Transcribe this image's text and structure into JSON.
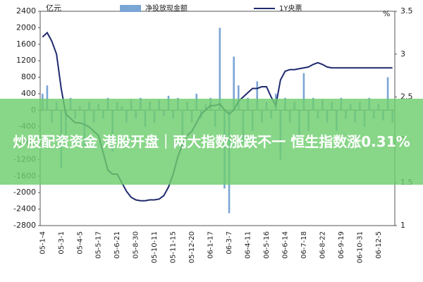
{
  "chart_data": {
    "type": "bar-line",
    "y_unit": "亿元",
    "y2_unit": "%",
    "overlay_text": "炒股配资资金 港股开盘｜两大指数涨跌不一 恒生指数涨0.31%",
    "categories": [
      "05-1-4",
      null,
      null,
      null,
      "05-3-1",
      null,
      null,
      null,
      "05-4-5",
      null,
      null,
      null,
      "05-5-17",
      null,
      null,
      null,
      "05-6-21",
      null,
      null,
      null,
      "05-8-30",
      null,
      null,
      null,
      "05-10-11",
      null,
      null,
      null,
      "05-11-15",
      null,
      null,
      null,
      "05-12-20",
      null,
      null,
      null,
      "06-1-17",
      null,
      null,
      null,
      "06-3-7",
      null,
      null,
      null,
      "06-4-11",
      null,
      null,
      null,
      "06-5-16",
      null,
      null,
      null,
      "06-6-14",
      null,
      null,
      null,
      "06-7-18",
      null,
      null,
      null,
      "06-8-22",
      null,
      null,
      null,
      "06-9-19",
      null,
      null,
      null,
      "06-10-31",
      null,
      null,
      null,
      "06-12-5",
      null,
      null,
      null
    ],
    "series": [
      {
        "name": "净投放现金额",
        "color": "#7aa6d6",
        "axis": "y",
        "values": [
          400,
          600,
          -300,
          200,
          -1400,
          -600,
          300,
          -200,
          100,
          -900,
          200,
          -300,
          150,
          -200,
          300,
          -1000,
          200,
          100,
          -300,
          250,
          -200,
          300,
          -400,
          200,
          -300,
          250,
          -150,
          350,
          -200,
          300,
          -600,
          200,
          -300,
          400,
          -200,
          150,
          300,
          -400,
          2000,
          -1900,
          -2500,
          1300,
          600,
          -800,
          300,
          -500,
          700,
          -300,
          200,
          -200,
          400,
          -1200,
          300,
          -300,
          200,
          -600,
          900,
          -500,
          300,
          -200,
          250,
          -300,
          200,
          -500,
          300,
          -200,
          150,
          -300,
          200,
          -400,
          300,
          -200,
          150,
          -250,
          800,
          -300
        ]
      },
      {
        "name": "1Y央票",
        "color": "#1f2a6e",
        "axis": "y2",
        "values": [
          3.2,
          3.25,
          3.15,
          3.0,
          2.6,
          2.3,
          2.25,
          2.2,
          2.2,
          2.18,
          2.15,
          2.1,
          2.05,
          1.85,
          1.65,
          1.6,
          1.6,
          1.5,
          1.4,
          1.33,
          1.3,
          1.29,
          1.29,
          1.3,
          1.3,
          1.31,
          1.35,
          1.45,
          1.6,
          1.8,
          1.95,
          2.05,
          2.1,
          2.2,
          2.3,
          2.35,
          2.4,
          2.4,
          2.42,
          2.35,
          2.3,
          2.35,
          2.45,
          2.5,
          2.55,
          2.6,
          2.6,
          2.62,
          2.62,
          2.5,
          2.4,
          2.7,
          2.8,
          2.82,
          2.82,
          2.83,
          2.84,
          2.85,
          2.88,
          2.9,
          2.88,
          2.85,
          2.84,
          2.84,
          2.84,
          2.84,
          2.84,
          2.84,
          2.84,
          2.84,
          2.84,
          2.84,
          2.84,
          2.84,
          2.84,
          2.84
        ]
      }
    ],
    "ylim": [
      -2800,
      2400
    ],
    "yticks": [
      -2800,
      -2400,
      -2000,
      -1600,
      -1200,
      -800,
      -400,
      0,
      400,
      800,
      1200,
      1600,
      2000,
      2400
    ],
    "y2lim": [
      1,
      3.5
    ],
    "y2ticks": [
      1,
      1.5,
      2,
      2.5,
      3,
      3.5
    ]
  }
}
